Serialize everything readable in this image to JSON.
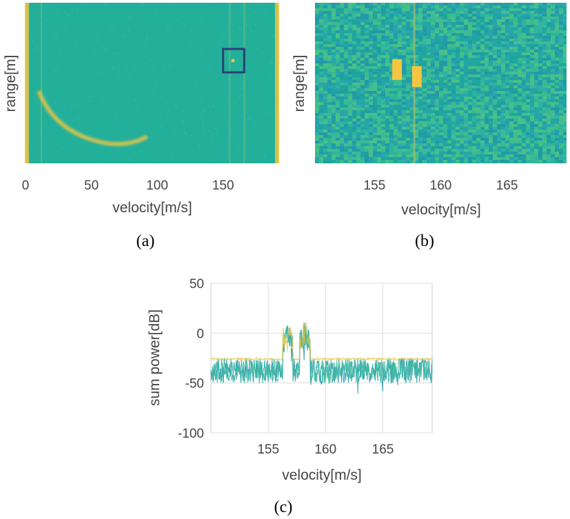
{
  "colors": {
    "background": "#22b09a",
    "background_alt": "#2ea8a0",
    "highlight": "#f5c542",
    "highlight_soft": "#c8c060",
    "box": "#2c3f73",
    "noise_line": "#2a9cae",
    "noise_line_alt": "#3bb8a0",
    "peak_line": "#e8c23a",
    "grid": "#dddddd",
    "axis": "#444444"
  },
  "chart_data": [
    {
      "id": "a",
      "type": "heatmap",
      "caption": "(a)",
      "xlabel": "velocity[m/s]",
      "ylabel": "range[m]",
      "xlim": [
        0,
        192
      ],
      "xticks": [
        {
          "value": 0,
          "label": "0"
        },
        {
          "value": 50,
          "label": "50"
        },
        {
          "value": 100,
          "label": "100"
        },
        {
          "value": 150,
          "label": "150"
        }
      ],
      "features": {
        "edge_bands_velocity": [
          1,
          191
        ],
        "arc_velocity_range": [
          10,
          85
        ],
        "arc_peak_velocity": 62,
        "target_velocity": 157.5,
        "zoom_box_velocity": [
          150,
          166
        ]
      }
    },
    {
      "id": "b",
      "type": "heatmap",
      "caption": "(b)",
      "xlabel": "velocity[m/s]",
      "ylabel": "range[m]",
      "xlim": [
        150.5,
        169.5
      ],
      "xticks": [
        {
          "value": 155,
          "label": "155"
        },
        {
          "value": 160,
          "label": "160"
        },
        {
          "value": 165,
          "label": "165"
        }
      ],
      "features": {
        "targets_velocity": [
          156.7,
          158.2
        ],
        "center_line_velocity": 158
      }
    },
    {
      "id": "c",
      "type": "line",
      "caption": "(c)",
      "xlabel": "velocity[m/s]",
      "ylabel": "sum power[dB]",
      "xlim": [
        150,
        169.3
      ],
      "ylim": [
        -100,
        50
      ],
      "grid": true,
      "xticks": [
        {
          "value": 155,
          "label": "155"
        },
        {
          "value": 160,
          "label": "160"
        },
        {
          "value": 165,
          "label": "165"
        }
      ],
      "yticks": [
        {
          "value": 50,
          "label": "50"
        },
        {
          "value": 0,
          "label": "0"
        },
        {
          "value": -50,
          "label": "-50"
        },
        {
          "value": -100,
          "label": "-100"
        }
      ],
      "noise_floor_db": [
        -50,
        -25
      ],
      "peaks": [
        {
          "velocity": 156.7,
          "power_db": 15
        },
        {
          "velocity": 158.2,
          "power_db": 15
        }
      ]
    }
  ]
}
